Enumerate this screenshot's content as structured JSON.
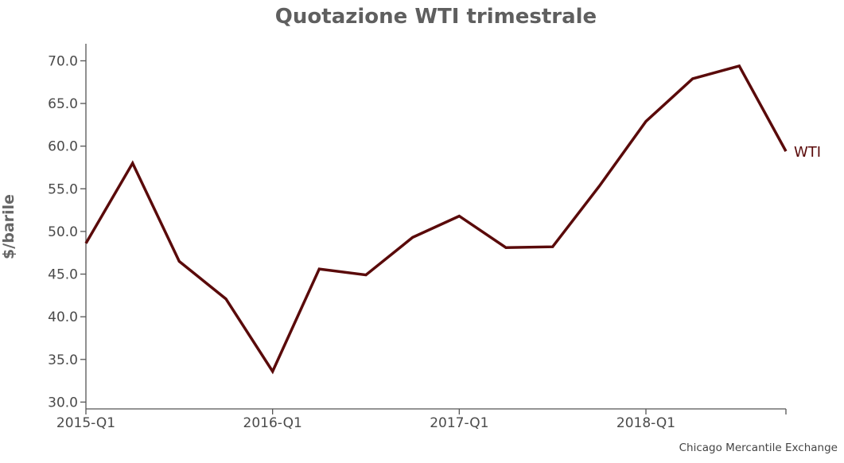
{
  "chart_data": {
    "type": "line",
    "title": "Quotazione WTI trimestrale",
    "ylabel": "$/barile",
    "xlabel": "",
    "source": "Chicago Mercantile Exchange",
    "ylim": [
      29.2,
      72.0
    ],
    "x": [
      "2015-Q1",
      "2015-Q2",
      "2015-Q3",
      "2015-Q4",
      "2016-Q1",
      "2016-Q2",
      "2016-Q3",
      "2016-Q4",
      "2017-Q1",
      "2017-Q2",
      "2017-Q3",
      "2017-Q4",
      "2018-Q1",
      "2018-Q2",
      "2018-Q3",
      "2018-Q4"
    ],
    "xticks": [
      "2015-Q1",
      "2016-Q1",
      "2017-Q1",
      "2018-Q1"
    ],
    "yticks": [
      "30.0",
      "35.0",
      "40.0",
      "45.0",
      "50.0",
      "55.0",
      "60.0",
      "65.0",
      "70.0"
    ],
    "series": [
      {
        "name": "WTI",
        "color": "#5a0a0a",
        "values": [
          48.6,
          58.0,
          46.5,
          42.1,
          33.6,
          45.6,
          44.9,
          49.3,
          51.8,
          48.1,
          48.2,
          55.3,
          62.9,
          67.9,
          69.4,
          59.4
        ]
      }
    ],
    "grid": false,
    "legend": "inline-end"
  }
}
